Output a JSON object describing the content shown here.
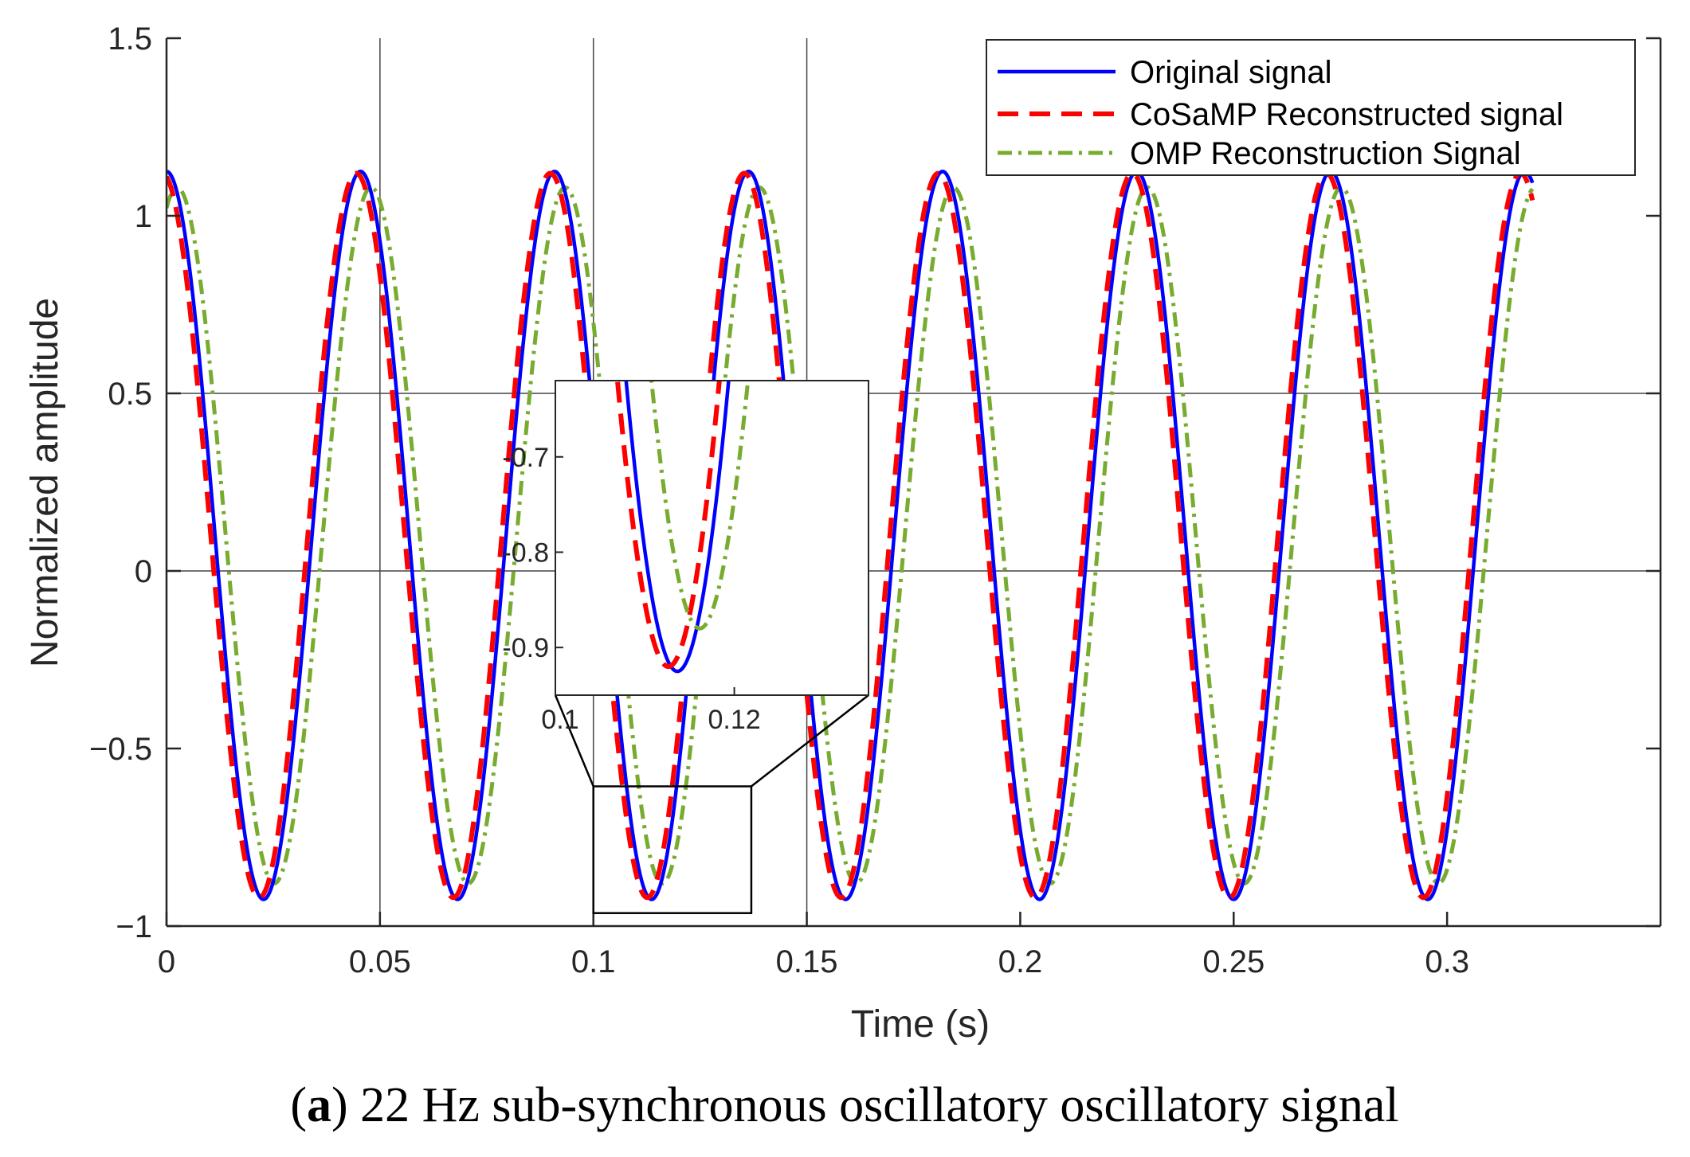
{
  "chart_data": {
    "type": "line",
    "xlabel": "Time (s)",
    "ylabel": "Normalized amplitude",
    "xlim": [
      0,
      0.35
    ],
    "ylim": [
      -1,
      1.5
    ],
    "xticks": [
      0,
      0.05,
      0.1,
      0.15,
      0.2,
      0.25,
      0.3
    ],
    "xtick_labels": [
      "0",
      "0.05",
      "0.1",
      "0.15",
      "0.2",
      "0.25",
      "0.3"
    ],
    "yticks": [
      -1,
      -0.5,
      0,
      0.5,
      1,
      1.5
    ],
    "ytick_labels": [
      "−1",
      "−0.5",
      "0",
      "0.5",
      "1",
      "1.5"
    ],
    "grid_x": [
      0.05,
      0.1,
      0.15
    ],
    "grid_y": [
      0,
      0.5
    ],
    "legend_position": "top-right",
    "series": [
      {
        "name": "Original signal",
        "color": "#0000ff",
        "style": "solid",
        "frequency_hz": 22,
        "offset": 0.1,
        "amplitude": 1.025,
        "phase_shift_s": 0.0,
        "t_end": 0.32
      },
      {
        "name": "CoSaMP Reconstructed signal",
        "color": "#ff0000",
        "style": "dashed",
        "frequency_hz": 22,
        "offset": 0.1,
        "amplitude": 1.02,
        "phase_shift_s": -0.001,
        "t_end": 0.32
      },
      {
        "name": "OMP Reconstruction Signal",
        "color": "#77ac30",
        "style": "dashdot",
        "frequency_hz": 22,
        "offset": 0.1,
        "amplitude": 0.98,
        "phase_shift_s": 0.0025,
        "t_end": 0.32
      }
    ],
    "inset": {
      "xlim": [
        0.1,
        0.135
      ],
      "ylim": [
        -0.95,
        -0.62
      ],
      "xticks": [
        0.1,
        0.12
      ],
      "xtick_labels": [
        "0.1",
        "0.12"
      ],
      "yticks": [
        -0.7,
        -0.8,
        -0.9
      ],
      "ytick_labels": [
        "-0.7",
        "-0.8",
        "-0.9"
      ],
      "zoom_xlim": [
        0.1,
        0.137
      ],
      "zoom_ylim": [
        -0.95,
        -0.62
      ]
    }
  },
  "caption": {
    "label": "a",
    "text": " 22 Hz sub-synchronous oscillatory oscillatory signal"
  }
}
